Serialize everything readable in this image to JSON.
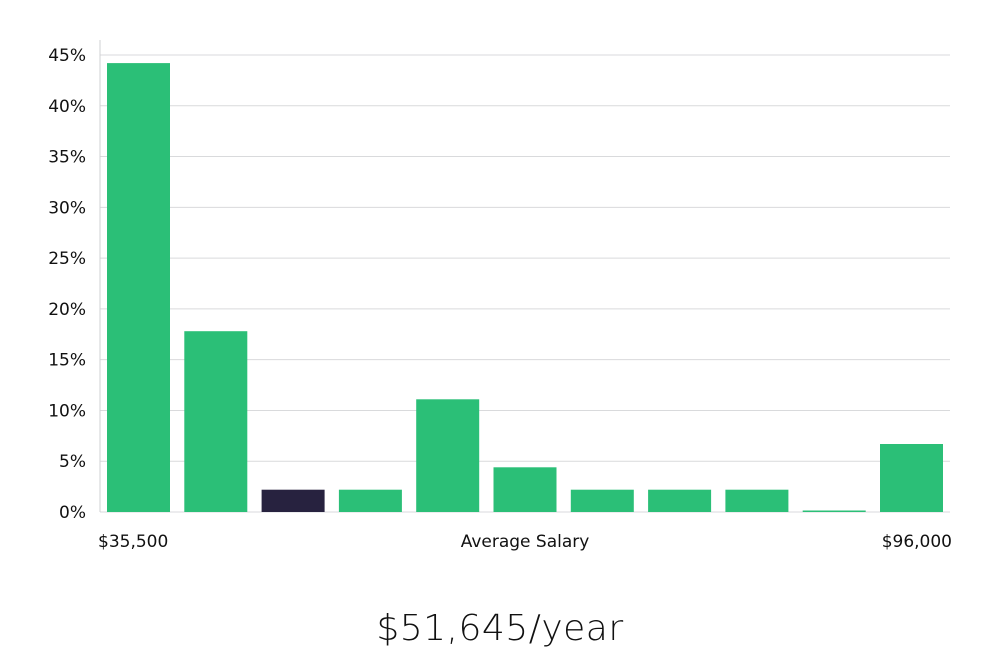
{
  "chart_data": {
    "type": "bar",
    "title": "",
    "xlabel": "Average Salary",
    "ylabel": "",
    "x_range_labels": {
      "min": "$35,500",
      "max": "$96,000"
    },
    "ylim": [
      0,
      45
    ],
    "yticks": [
      0,
      5,
      10,
      15,
      20,
      25,
      30,
      35,
      40,
      45
    ],
    "y_tick_format": "%",
    "grid": true,
    "legend": "none",
    "values": [
      44.2,
      17.8,
      2.2,
      2.2,
      11.1,
      4.4,
      2.2,
      2.2,
      2.2,
      0.1,
      6.7
    ],
    "highlight_index": 2,
    "colors": {
      "bar": "#2bbf77",
      "highlight": "#27223f",
      "grid": "#d9dadc",
      "axis": "#cfd0d3"
    }
  },
  "summary": {
    "salary_text": "$51,645/year"
  }
}
